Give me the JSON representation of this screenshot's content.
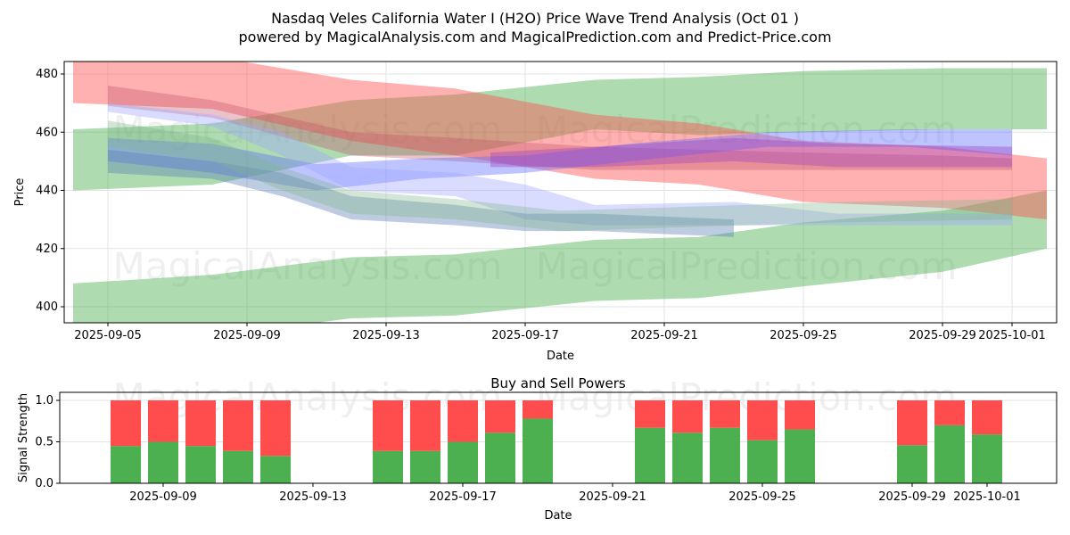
{
  "title": "Nasdaq Veles California Water I (H2O) Price Wave Trend Analysis (Oct 01 )",
  "subtitle": "powered by MagicalAnalysis.com and MagicalPrediction.com and Predict-Price.com",
  "watermarks": [
    "MagicalAnalysis.com",
    "MagicalPrediction.com"
  ],
  "chart_data": [
    {
      "type": "area",
      "title": "",
      "xlabel": "Date",
      "ylabel": "Price",
      "xlim": [
        "2025-09-04",
        "2025-10-02"
      ],
      "ylim": [
        394,
        484
      ],
      "yticks": [
        400,
        420,
        440,
        460,
        480
      ],
      "xticks": [
        "2025-09-05",
        "2025-09-09",
        "2025-09-13",
        "2025-09-17",
        "2025-09-21",
        "2025-09-25",
        "2025-09-29",
        "2025-10-01"
      ],
      "grid": true,
      "bands": [
        {
          "name": "green-upper",
          "color": "#4caf50",
          "opacity": 0.45,
          "dates": [
            "2025-09-04",
            "2025-09-08",
            "2025-09-12",
            "2025-09-15",
            "2025-09-19",
            "2025-09-22",
            "2025-09-25",
            "2025-09-29",
            "2025-10-02"
          ],
          "upper": [
            461,
            463,
            471,
            473,
            478,
            479,
            481,
            482,
            482
          ],
          "lower": [
            440,
            442,
            452,
            452,
            461,
            459,
            460,
            461,
            461
          ]
        },
        {
          "name": "green-lower",
          "color": "#4caf50",
          "opacity": 0.45,
          "dates": [
            "2025-09-04",
            "2025-09-08",
            "2025-09-12",
            "2025-09-15",
            "2025-09-19",
            "2025-09-22",
            "2025-09-25",
            "2025-09-29",
            "2025-10-02"
          ],
          "upper": [
            408,
            411,
            417,
            418,
            423,
            424,
            429,
            433,
            440
          ],
          "lower": [
            393,
            390,
            396,
            397,
            402,
            403,
            407,
            412,
            420
          ]
        },
        {
          "name": "red-main",
          "color": "#ff5252",
          "opacity": 0.45,
          "dates": [
            "2025-09-04",
            "2025-09-08",
            "2025-09-12",
            "2025-09-15",
            "2025-09-19",
            "2025-09-22",
            "2025-09-25",
            "2025-09-29",
            "2025-10-02"
          ],
          "upper": [
            486,
            486,
            478,
            475,
            466,
            463,
            457,
            455,
            451
          ],
          "lower": [
            470,
            468,
            457,
            452,
            444,
            442,
            436,
            434,
            430
          ]
        },
        {
          "name": "red-secondary",
          "color": "#c0506a",
          "opacity": 0.35,
          "dates": [
            "2025-09-05",
            "2025-09-08",
            "2025-09-12",
            "2025-09-15",
            "2025-09-19",
            "2025-09-25",
            "2025-09-29",
            "2025-10-01"
          ],
          "upper": [
            476,
            471,
            460,
            458,
            455,
            453,
            452,
            451
          ],
          "lower": [
            469,
            465,
            452,
            450,
            447,
            447,
            447,
            447
          ]
        },
        {
          "name": "blue-1",
          "color": "#5c6bff",
          "opacity": 0.4,
          "dates": [
            "2025-09-05",
            "2025-09-08",
            "2025-09-11",
            "2025-09-14",
            "2025-09-17",
            "2025-09-20",
            "2025-09-24",
            "2025-09-28",
            "2025-10-01"
          ],
          "upper": [
            458,
            456,
            449,
            451,
            452,
            456,
            460,
            461,
            461
          ],
          "lower": [
            450,
            446,
            440,
            444,
            446,
            450,
            455,
            455,
            452
          ]
        },
        {
          "name": "blue-2",
          "color": "#9fa8ff",
          "opacity": 0.4,
          "dates": [
            "2025-09-05",
            "2025-09-08",
            "2025-09-10",
            "2025-09-12",
            "2025-09-15",
            "2025-09-17",
            "2025-09-19",
            "2025-09-23",
            "2025-09-26",
            "2025-10-01"
          ],
          "upper": [
            470,
            466,
            460,
            448,
            446,
            442,
            435,
            436,
            432,
            432
          ],
          "lower": [
            467,
            462,
            452,
            440,
            438,
            430,
            428,
            428,
            428,
            428
          ]
        },
        {
          "name": "steel-blue",
          "color": "#5a7fb5",
          "opacity": 0.4,
          "dates": [
            "2025-09-05",
            "2025-09-08",
            "2025-09-10",
            "2025-09-12",
            "2025-09-15",
            "2025-09-17",
            "2025-09-19",
            "2025-09-23"
          ],
          "upper": [
            454,
            450,
            446,
            438,
            435,
            432,
            432,
            430
          ],
          "lower": [
            446,
            444,
            438,
            430,
            428,
            426,
            426,
            424
          ]
        },
        {
          "name": "green-gray",
          "color": "#7fb58a",
          "opacity": 0.35,
          "dates": [
            "2025-09-05",
            "2025-09-08",
            "2025-09-10",
            "2025-09-12",
            "2025-09-15",
            "2025-09-18",
            "2025-09-26",
            "2025-10-01"
          ],
          "upper": [
            464,
            458,
            448,
            440,
            437,
            433,
            436,
            437
          ],
          "lower": [
            455,
            450,
            440,
            432,
            430,
            426,
            429,
            430
          ]
        },
        {
          "name": "purple",
          "color": "#a040c0",
          "opacity": 0.4,
          "dates": [
            "2025-09-16",
            "2025-09-19",
            "2025-09-23",
            "2025-09-26",
            "2025-10-01"
          ],
          "upper": [
            453,
            455,
            458,
            456,
            455
          ],
          "lower": [
            448,
            448,
            450,
            448,
            448
          ]
        }
      ]
    },
    {
      "type": "bar",
      "title": "Buy and Sell Powers",
      "xlabel": "Date",
      "ylabel": "Signal Strength",
      "xlim": [
        "2025-09-06",
        "2025-10-02"
      ],
      "ylim": [
        0,
        1.05
      ],
      "yticks": [
        "0.0",
        "0.5",
        "1.0"
      ],
      "xticks": [
        "2025-09-09",
        "2025-09-13",
        "2025-09-17",
        "2025-09-21",
        "2025-09-25",
        "2025-09-29",
        "2025-10-01"
      ],
      "categories": [
        "2025-09-08",
        "2025-09-09",
        "2025-09-10",
        "2025-09-11",
        "2025-09-12",
        "2025-09-15",
        "2025-09-16",
        "2025-09-17",
        "2025-09-18",
        "2025-09-19",
        "2025-09-22",
        "2025-09-23",
        "2025-09-24",
        "2025-09-25",
        "2025-09-26",
        "2025-09-29",
        "2025-09-30",
        "2025-10-01"
      ],
      "series": [
        {
          "name": "Buy",
          "color": "#4caf50",
          "values": [
            0.45,
            0.5,
            0.45,
            0.39,
            0.33,
            0.39,
            0.39,
            0.5,
            0.61,
            0.78,
            0.67,
            0.61,
            0.67,
            0.52,
            0.65,
            0.46,
            0.7,
            0.59
          ]
        },
        {
          "name": "Sell",
          "color": "#ff4c4c",
          "values": [
            0.55,
            0.5,
            0.55,
            0.61,
            0.67,
            0.61,
            0.61,
            0.5,
            0.39,
            0.22,
            0.33,
            0.39,
            0.33,
            0.48,
            0.35,
            0.54,
            0.3,
            0.41
          ]
        }
      ]
    }
  ]
}
